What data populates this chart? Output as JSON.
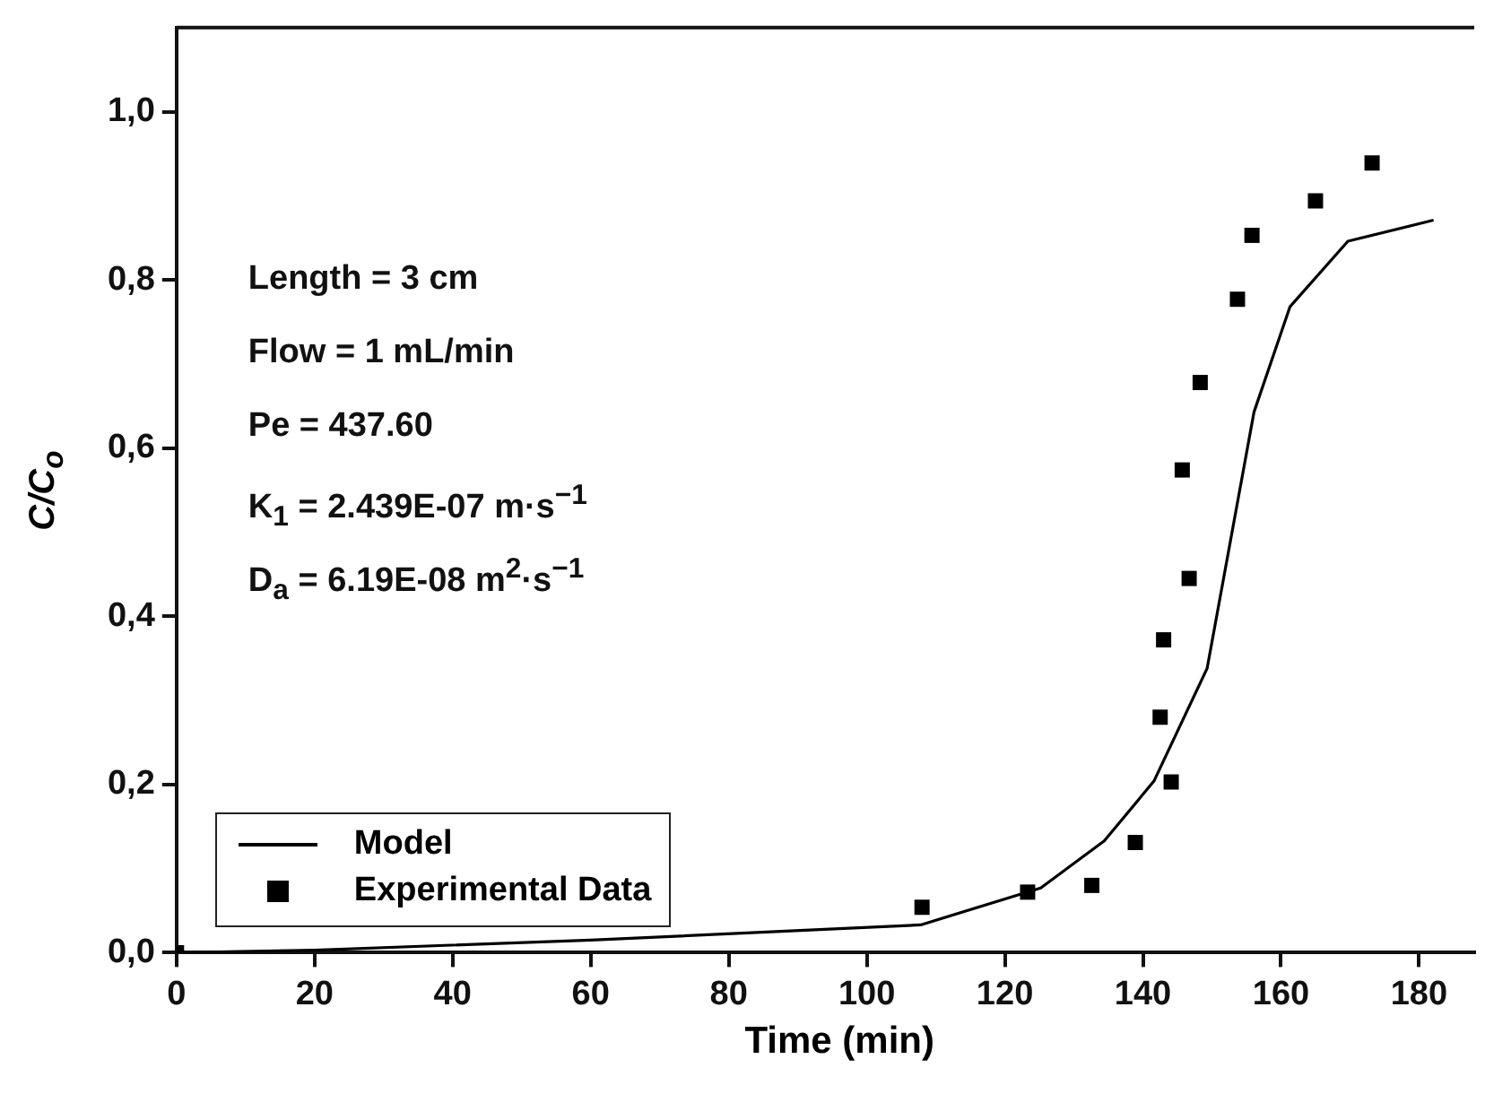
{
  "chart_data": {
    "type": "scatter",
    "xlabel": "Time (min)",
    "ylabel": "C/C$_{o}$",
    "xlim": [
      0,
      188
    ],
    "xticks": [
      0,
      20,
      40,
      60,
      80,
      100,
      120,
      140,
      160,
      180
    ],
    "ylim": [
      0,
      1.1
    ],
    "yticks": [
      {
        "value": 0,
        "label": "0,0"
      },
      {
        "value": 0.2,
        "label": "0,2"
      },
      {
        "value": 0.4,
        "label": "0,4"
      },
      {
        "value": 0.6,
        "label": "0,6"
      },
      {
        "value": 0.8,
        "label": "0,8"
      },
      {
        "value": 1.0,
        "label": "1,0"
      }
    ],
    "grid": false,
    "legend": "bottom left",
    "annotations": [
      "Length = 3 cm",
      "Flow = 1 mL/min",
      "Pe = 437.60",
      "K$_{1}$ = 2.439E-07 m·s$^{−1}$",
      "D$_{a}$ = 6.19E-08 m$^{2}$·s$^{−1}$"
    ],
    "series": [
      {
        "name": "Model",
        "type": "line",
        "color": "#000000",
        "marker": "none",
        "line_style": "solid",
        "x": [
          0,
          20,
          60,
          97.4,
          107.8,
          125.2,
          134.4,
          141.6,
          149.3,
          156.1,
          161.3,
          169.7,
          182.1
        ],
        "values": [
          0,
          0.003,
          0.015,
          0.029,
          0.033,
          0.077,
          0.133,
          0.204,
          0.338,
          0.643,
          0.768,
          0.846,
          0.871
        ]
      },
      {
        "name": "Experimental Data",
        "type": "scatter",
        "color": "#000000",
        "marker": "square",
        "x": [
          0,
          108,
          123.3,
          132.6,
          138.9,
          144.1,
          142.5,
          143,
          146.7,
          145.7,
          148.3,
          153.7,
          155.8,
          165,
          173.2
        ],
        "values": [
          0,
          0.054,
          0.072,
          0.08,
          0.131,
          0.203,
          0.28,
          0.372,
          0.445,
          0.574,
          0.678,
          0.777,
          0.853,
          0.894,
          0.939
        ]
      }
    ]
  }
}
